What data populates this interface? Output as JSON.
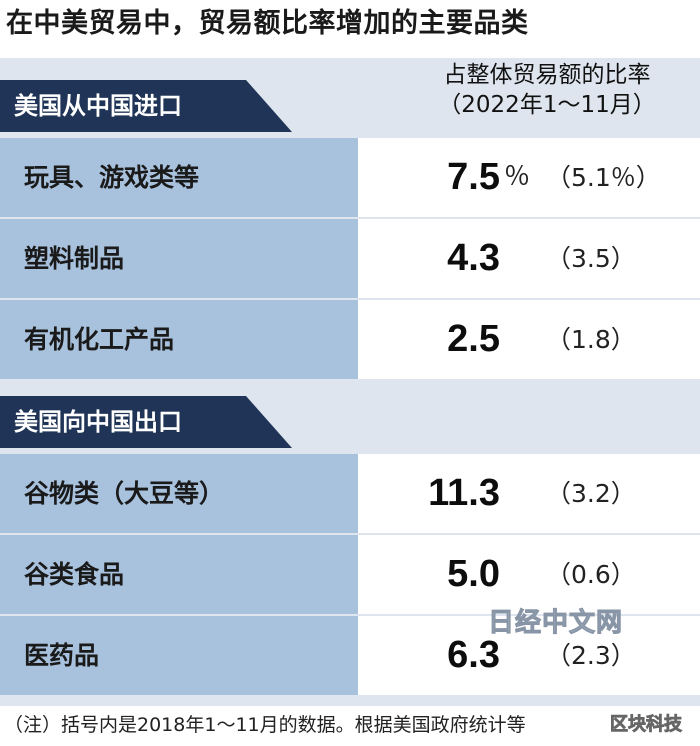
{
  "title": "在中美贸易中，贸易额比率增加的主要品类",
  "column_header": {
    "line1": "占整体贸易额的比率",
    "line2": "（2022年1～11月）"
  },
  "colors": {
    "section_bg": "#1f3456",
    "label_bg": "#a8c2de",
    "panel_bg": "#dfe5ee"
  },
  "chart_data": {
    "type": "table",
    "title": "在中美贸易中，贸易额比率增加的主要品类",
    "unit": "%",
    "sections": [
      {
        "name": "美国从中国进口",
        "rows": [
          {
            "label": "玩具、游戏类等",
            "value": "7.5",
            "unit": "％",
            "prev": "（5.1％）"
          },
          {
            "label": "塑料制品",
            "value": "4.3",
            "unit": "",
            "prev": "（3.5）"
          },
          {
            "label": "有机化工产品",
            "value": "2.5",
            "unit": "",
            "prev": "（1.8）"
          }
        ]
      },
      {
        "name": "美国向中国出口",
        "rows": [
          {
            "label": "谷物类（大豆等）",
            "value": "11.3",
            "unit": "",
            "prev": "（3.2）"
          },
          {
            "label": "谷类食品",
            "value": "5.0",
            "unit": "",
            "prev": "（0.6）"
          },
          {
            "label": "医药品",
            "value": "6.3",
            "unit": "",
            "prev": "（2.3）"
          }
        ]
      }
    ]
  },
  "note": "（注）括号内是2018年1～11月的数据。根据美国政府统计等",
  "watermark_nikkei": "日经中文网",
  "watermark_block": "区块科技"
}
